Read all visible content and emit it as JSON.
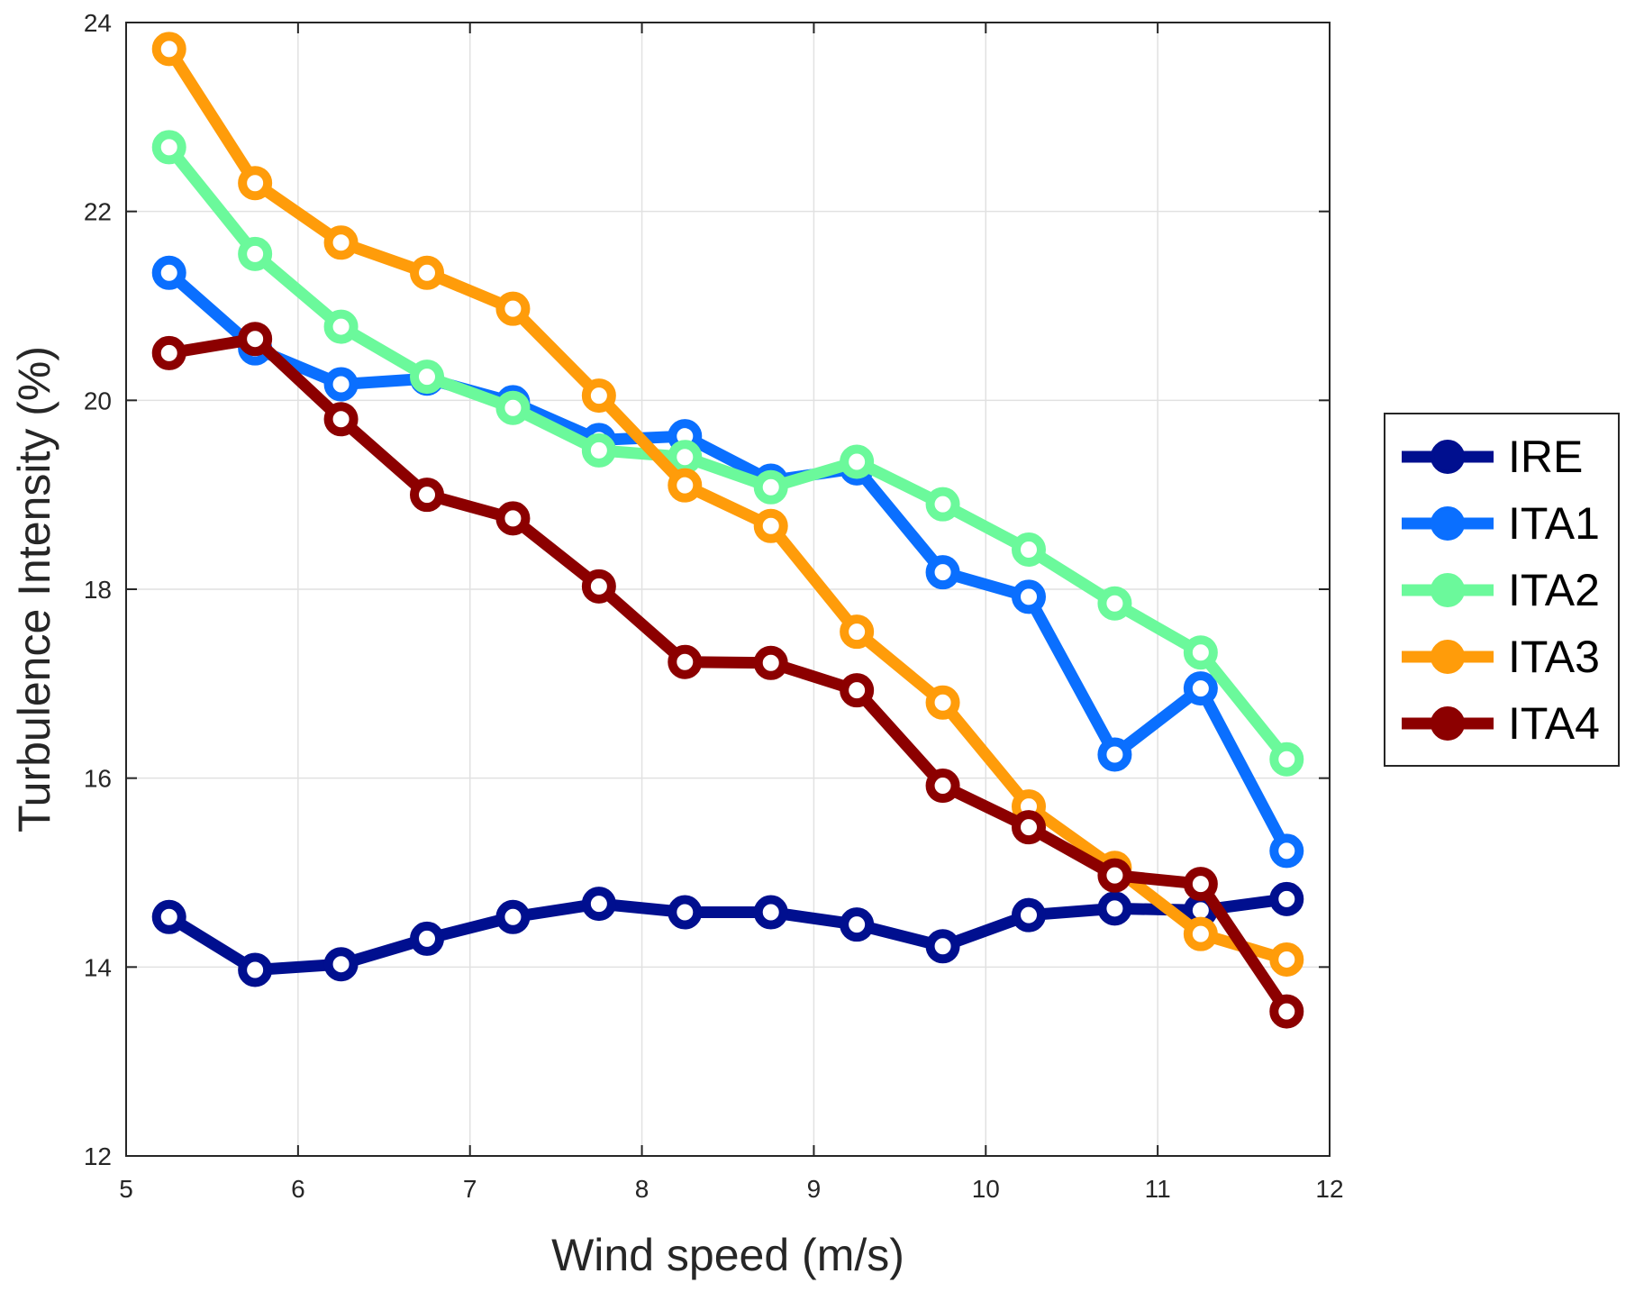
{
  "chart_data": {
    "type": "line",
    "title": "",
    "xlabel": "Wind speed (m/s)",
    "ylabel": "Turbulence Intensity (%)",
    "xlim": [
      5,
      12
    ],
    "ylim": [
      12,
      24
    ],
    "xticks": [
      5,
      6,
      7,
      8,
      9,
      10,
      11,
      12
    ],
    "yticks": [
      12,
      14,
      16,
      18,
      20,
      22,
      24
    ],
    "xtick_labels": [
      "5",
      "6",
      "7",
      "8",
      "9",
      "10",
      "11",
      "12"
    ],
    "ytick_labels": [
      "12",
      "14",
      "16",
      "18",
      "20",
      "22",
      "24"
    ],
    "grid": true,
    "legend_position": "outside-right",
    "x": [
      5.25,
      5.75,
      6.25,
      6.75,
      7.25,
      7.75,
      8.25,
      8.75,
      9.25,
      9.75,
      10.25,
      10.75,
      11.25,
      11.75
    ],
    "series": [
      {
        "name": "IRE",
        "color": "#000f8f",
        "values": [
          14.53,
          13.97,
          14.03,
          14.3,
          14.53,
          14.67,
          14.58,
          14.58,
          14.45,
          14.22,
          14.55,
          14.62,
          14.6,
          14.72
        ]
      },
      {
        "name": "ITA1",
        "color": "#0a6fff",
        "values": [
          21.35,
          20.55,
          20.17,
          20.23,
          19.98,
          19.58,
          19.62,
          19.15,
          19.28,
          18.18,
          17.92,
          16.25,
          16.95,
          15.23
        ]
      },
      {
        "name": "ITA2",
        "color": "#6bf99b",
        "values": [
          22.68,
          21.55,
          20.78,
          20.25,
          19.92,
          19.47,
          19.4,
          19.08,
          19.35,
          18.9,
          18.42,
          17.85,
          17.33,
          16.2
        ]
      },
      {
        "name": "ITA3",
        "color": "#ff9c0a",
        "values": [
          23.72,
          22.3,
          21.67,
          21.35,
          20.97,
          20.05,
          19.1,
          18.67,
          17.55,
          16.8,
          15.7,
          15.05,
          14.35,
          14.08
        ]
      },
      {
        "name": "ITA4",
        "color": "#8c0000",
        "values": [
          20.5,
          20.65,
          19.8,
          19.0,
          18.75,
          18.03,
          17.23,
          17.22,
          16.93,
          15.92,
          15.48,
          14.97,
          14.88,
          13.53
        ]
      }
    ]
  }
}
